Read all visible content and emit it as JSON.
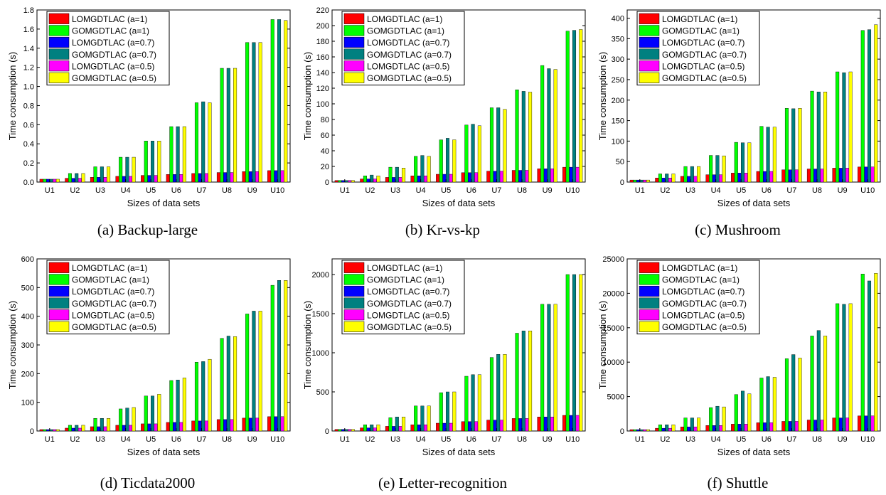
{
  "series_names": [
    "LOMGDTLAC (a=1)",
    "GOMGDTLAC (a=1)",
    "LOMGDTLAC (a=0.7)",
    "GOMGDTLAC (a=0.7)",
    "LOMGDTLAC (a=0.5)",
    "GOMGDTLAC (a=0.5)"
  ],
  "series_colors": [
    "#ff0000",
    "#00ff00",
    "#0000ff",
    "#008080",
    "#ff00ff",
    "#ffff00"
  ],
  "chart_data": [
    {
      "type": "bar",
      "caption": "(a)  Backup-large",
      "categories": [
        "U1",
        "U2",
        "U3",
        "U4",
        "U5",
        "U6",
        "U7",
        "U8",
        "U9",
        "U10"
      ],
      "xlabel": "Sizes of data sets",
      "ylabel": "Time consumption (s)",
      "ylim": [
        0,
        1.8
      ],
      "yticks": [
        0,
        0.2,
        0.4,
        0.6,
        0.8,
        1.0,
        1.2,
        1.4,
        1.6,
        1.8
      ],
      "ytick_labels": [
        "0.0",
        "0.2",
        "0.4",
        "0.6",
        "0.8",
        "1.0",
        "1.2",
        "1.4",
        "1.6",
        "1.8"
      ],
      "legend": "top-left",
      "series": [
        {
          "name": "LOMGDTLAC (a=1)",
          "values": [
            0.03,
            0.04,
            0.05,
            0.06,
            0.07,
            0.08,
            0.09,
            0.1,
            0.11,
            0.12
          ]
        },
        {
          "name": "GOMGDTLAC (a=1)",
          "values": [
            0.03,
            0.09,
            0.16,
            0.26,
            0.43,
            0.58,
            0.83,
            1.19,
            1.46,
            1.7
          ]
        },
        {
          "name": "LOMGDTLAC (a=0.7)",
          "values": [
            0.03,
            0.04,
            0.05,
            0.06,
            0.07,
            0.08,
            0.09,
            0.1,
            0.11,
            0.12
          ]
        },
        {
          "name": "GOMGDTLAC (a=0.7)",
          "values": [
            0.03,
            0.09,
            0.16,
            0.26,
            0.43,
            0.58,
            0.84,
            1.19,
            1.46,
            1.7
          ]
        },
        {
          "name": "LOMGDTLAC (a=0.5)",
          "values": [
            0.03,
            0.04,
            0.05,
            0.06,
            0.07,
            0.08,
            0.09,
            0.1,
            0.11,
            0.12
          ]
        },
        {
          "name": "GOMGDTLAC (a=0.5)",
          "values": [
            0.03,
            0.09,
            0.16,
            0.26,
            0.43,
            0.58,
            0.83,
            1.19,
            1.46,
            1.69
          ]
        }
      ]
    },
    {
      "type": "bar",
      "caption": "(b)  Kr-vs-kp",
      "categories": [
        "U1",
        "U2",
        "U3",
        "U4",
        "U5",
        "U6",
        "U7",
        "U8",
        "U9",
        "U10"
      ],
      "xlabel": "Sizes of data sets",
      "ylabel": "Time consumption (s)",
      "ylim": [
        0,
        220
      ],
      "yticks": [
        0,
        20,
        40,
        60,
        80,
        100,
        120,
        140,
        160,
        180,
        200,
        220
      ],
      "ytick_labels": [
        "0",
        "20",
        "40",
        "60",
        "80",
        "100",
        "120",
        "140",
        "160",
        "180",
        "200",
        "220"
      ],
      "legend": "top-left",
      "series": [
        {
          "name": "LOMGDTLAC (a=1)",
          "values": [
            2,
            4,
            6,
            8,
            10,
            12,
            14,
            15,
            17,
            19
          ]
        },
        {
          "name": "GOMGDTLAC (a=1)",
          "values": [
            2,
            8,
            19,
            33,
            54,
            73,
            95,
            118,
            149,
            193
          ]
        },
        {
          "name": "LOMGDTLAC (a=0.7)",
          "values": [
            2,
            4,
            6,
            8,
            10,
            12,
            14,
            15,
            17,
            19
          ]
        },
        {
          "name": "GOMGDTLAC (a=0.7)",
          "values": [
            2,
            9,
            19,
            34,
            56,
            74,
            95,
            116,
            145,
            194
          ]
        },
        {
          "name": "LOMGDTLAC (a=0.5)",
          "values": [
            2,
            4,
            6,
            8,
            10,
            12,
            14,
            15,
            17,
            19
          ]
        },
        {
          "name": "GOMGDTLAC (a=0.5)",
          "values": [
            2,
            8,
            18,
            33,
            54,
            72,
            93,
            115,
            144,
            195
          ]
        }
      ]
    },
    {
      "type": "bar",
      "caption": "(c)  Mushroom",
      "categories": [
        "U1",
        "U2",
        "U3",
        "U4",
        "U5",
        "U6",
        "U7",
        "U8",
        "U9",
        "U10"
      ],
      "xlabel": "Sizes of data sets",
      "ylabel": "Time consumption (s)",
      "ylim": [
        0,
        420
      ],
      "yticks": [
        0,
        50,
        100,
        150,
        200,
        250,
        300,
        350,
        400
      ],
      "ytick_labels": [
        "0",
        "50",
        "100",
        "150",
        "200",
        "250",
        "300",
        "350",
        "400"
      ],
      "legend": "top-left",
      "series": [
        {
          "name": "LOMGDTLAC (a=1)",
          "values": [
            5,
            10,
            14,
            18,
            22,
            26,
            30,
            32,
            34,
            37
          ]
        },
        {
          "name": "GOMGDTLAC (a=1)",
          "values": [
            5,
            20,
            38,
            65,
            97,
            136,
            180,
            222,
            269,
            370
          ]
        },
        {
          "name": "LOMGDTLAC (a=0.7)",
          "values": [
            5,
            10,
            14,
            18,
            22,
            26,
            30,
            32,
            34,
            37
          ]
        },
        {
          "name": "GOMGDTLAC (a=0.7)",
          "values": [
            5,
            20,
            38,
            65,
            96,
            134,
            179,
            220,
            267,
            372
          ]
        },
        {
          "name": "LOMGDTLAC (a=0.5)",
          "values": [
            5,
            10,
            14,
            18,
            22,
            26,
            30,
            32,
            34,
            37
          ]
        },
        {
          "name": "GOMGDTLAC (a=0.5)",
          "values": [
            5,
            20,
            38,
            64,
            96,
            134,
            180,
            220,
            269,
            384
          ]
        }
      ]
    },
    {
      "type": "bar",
      "caption": "(d)  Ticdata2000",
      "categories": [
        "U1",
        "U2",
        "U3",
        "U4",
        "U5",
        "U6",
        "U7",
        "U8",
        "U9",
        "U10"
      ],
      "xlabel": "Sizes of data sets",
      "ylabel": "Time consumption (s)",
      "ylim": [
        0,
        600
      ],
      "yticks": [
        0,
        100,
        200,
        300,
        400,
        500,
        600
      ],
      "ytick_labels": [
        "0",
        "100",
        "200",
        "300",
        "400",
        "500",
        "600"
      ],
      "legend": "top-left",
      "series": [
        {
          "name": "LOMGDTLAC (a=1)",
          "values": [
            5,
            10,
            15,
            20,
            25,
            30,
            35,
            40,
            45,
            50
          ]
        },
        {
          "name": "GOMGDTLAC (a=1)",
          "values": [
            5,
            20,
            44,
            77,
            122,
            176,
            240,
            323,
            408,
            508
          ]
        },
        {
          "name": "LOMGDTLAC (a=0.7)",
          "values": [
            5,
            10,
            15,
            20,
            25,
            30,
            35,
            40,
            45,
            50
          ]
        },
        {
          "name": "GOMGDTLAC (a=0.7)",
          "values": [
            5,
            20,
            44,
            80,
            122,
            178,
            242,
            331,
            418,
            525
          ]
        },
        {
          "name": "LOMGDTLAC (a=0.5)",
          "values": [
            5,
            10,
            15,
            20,
            25,
            30,
            35,
            40,
            45,
            50
          ]
        },
        {
          "name": "GOMGDTLAC (a=0.5)",
          "values": [
            5,
            20,
            44,
            82,
            128,
            185,
            250,
            329,
            418,
            525
          ]
        }
      ]
    },
    {
      "type": "bar",
      "caption": "(e)  Letter-recognition",
      "categories": [
        "U1",
        "U2",
        "U3",
        "U4",
        "U5",
        "U6",
        "U7",
        "U8",
        "U9",
        "U10"
      ],
      "xlabel": "Sizes of data sets",
      "ylabel": "Time consumption (s)",
      "ylim": [
        0,
        2200
      ],
      "yticks": [
        0,
        500,
        1000,
        1500,
        2000
      ],
      "ytick_labels": [
        "0",
        "500",
        "1000",
        "1500",
        "2000"
      ],
      "legend": "top-left",
      "series": [
        {
          "name": "LOMGDTLAC (a=1)",
          "values": [
            20,
            40,
            60,
            80,
            100,
            120,
            140,
            160,
            180,
            200
          ]
        },
        {
          "name": "GOMGDTLAC (a=1)",
          "values": [
            20,
            80,
            170,
            320,
            490,
            700,
            940,
            1250,
            1620,
            2000
          ]
        },
        {
          "name": "LOMGDTLAC (a=0.7)",
          "values": [
            20,
            40,
            60,
            80,
            100,
            120,
            140,
            160,
            180,
            200
          ]
        },
        {
          "name": "GOMGDTLAC (a=0.7)",
          "values": [
            20,
            80,
            180,
            320,
            500,
            720,
            980,
            1280,
            1620,
            2000
          ]
        },
        {
          "name": "LOMGDTLAC (a=0.5)",
          "values": [
            20,
            40,
            60,
            80,
            100,
            120,
            140,
            160,
            180,
            200
          ]
        },
        {
          "name": "GOMGDTLAC (a=0.5)",
          "values": [
            20,
            80,
            180,
            320,
            500,
            720,
            980,
            1280,
            1620,
            2000
          ]
        }
      ]
    },
    {
      "type": "bar",
      "caption": "(f)  Shuttle",
      "categories": [
        "U1",
        "U2",
        "U3",
        "U4",
        "U5",
        "U6",
        "U7",
        "U8",
        "U9",
        "U10"
      ],
      "xlabel": "Sizes of data sets",
      "ylabel": "Time consumption (s)",
      "ylim": [
        0,
        25000
      ],
      "yticks": [
        0,
        5000,
        10000,
        15000,
        20000,
        25000
      ],
      "ytick_labels": [
        "0",
        "5000",
        "10000",
        "15000",
        "20000",
        "25000"
      ],
      "legend": "top-left",
      "series": [
        {
          "name": "LOMGDTLAC (a=1)",
          "values": [
            200,
            400,
            600,
            800,
            1000,
            1200,
            1400,
            1600,
            1900,
            2200
          ]
        },
        {
          "name": "GOMGDTLAC (a=1)",
          "values": [
            200,
            900,
            1900,
            3400,
            5300,
            7700,
            10500,
            13800,
            18500,
            22800
          ]
        },
        {
          "name": "LOMGDTLAC (a=0.7)",
          "values": [
            200,
            400,
            600,
            800,
            1000,
            1200,
            1400,
            1600,
            1900,
            2200
          ]
        },
        {
          "name": "GOMGDTLAC (a=0.7)",
          "values": [
            200,
            900,
            1900,
            3600,
            5800,
            7900,
            11100,
            14600,
            18400,
            21800
          ]
        },
        {
          "name": "LOMGDTLAC (a=0.5)",
          "values": [
            200,
            400,
            600,
            800,
            1000,
            1200,
            1400,
            1600,
            1900,
            2200
          ]
        },
        {
          "name": "GOMGDTLAC (a=0.5)",
          "values": [
            200,
            900,
            1900,
            3500,
            5400,
            7800,
            10600,
            13800,
            18500,
            22900
          ]
        }
      ]
    }
  ]
}
